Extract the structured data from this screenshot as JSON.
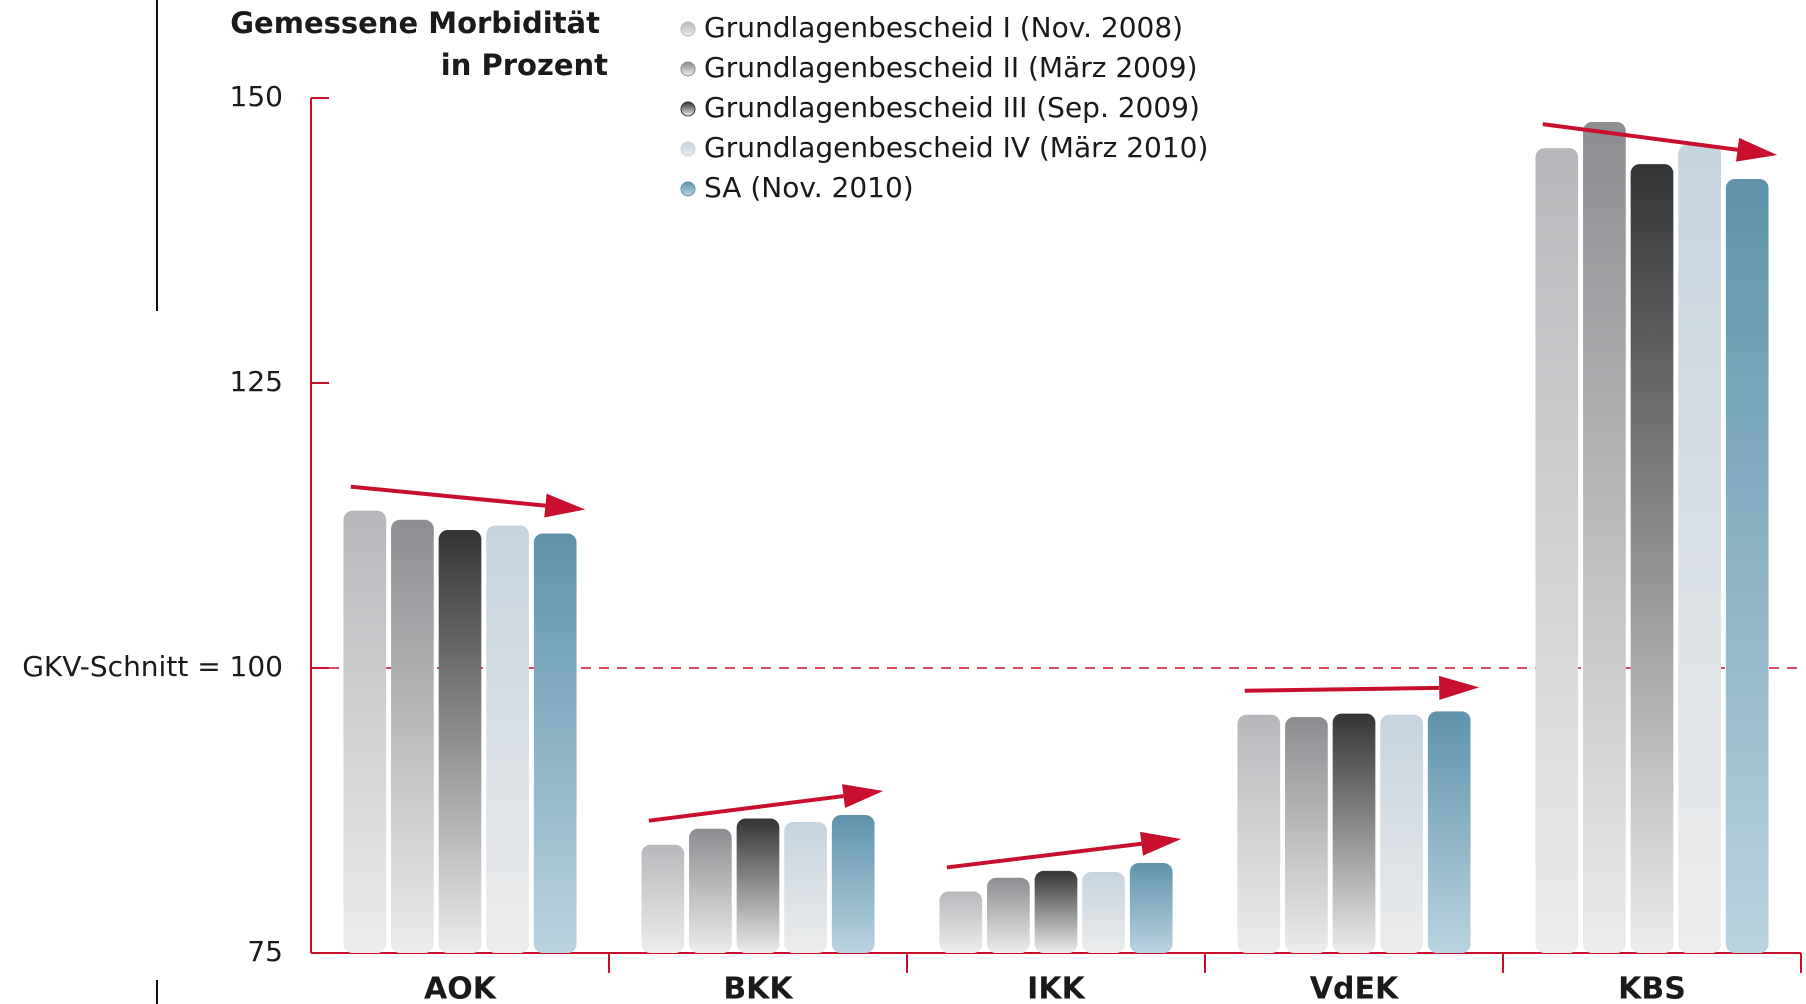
{
  "chart_data": {
    "type": "bar",
    "ylabel": [
      "Gemessene Morbidität",
      "in Prozent"
    ],
    "categories": [
      "AOK",
      "BKK",
      "IKK",
      "VdEK",
      "KBS"
    ],
    "series": [
      {
        "name": "Grundlagenbescheid I (Nov. 2008)",
        "color": "#b6b8bb",
        "values": [
          113.8,
          84.5,
          80.4,
          95.9,
          145.6
        ]
      },
      {
        "name": "Grundlagenbescheid II (März 2009)",
        "color": "#8b8d90",
        "values": [
          113.0,
          85.9,
          81.6,
          95.7,
          147.9
        ]
      },
      {
        "name": "Grundlagenbescheid III (Sep. 2009)",
        "color": "#333436",
        "values": [
          112.1,
          86.8,
          82.2,
          96.0,
          144.2
        ]
      },
      {
        "name": "Grundlagenbescheid IV (März 2010)",
        "color": "#c6d4df",
        "values": [
          112.5,
          86.5,
          82.1,
          95.9,
          145.9
        ]
      },
      {
        "name": "SA (Nov. 2010)",
        "color": "#5f93ab",
        "values": [
          111.8,
          87.1,
          82.9,
          96.2,
          142.9
        ]
      }
    ],
    "ylim": [
      75,
      150
    ],
    "yticks": [
      75,
      {
        "value": 100,
        "label": "GKV-Schnitt = 100"
      },
      125,
      150
    ],
    "reference_line": {
      "value": 100,
      "color": "#c8102e"
    },
    "axis_color": "#c8102e",
    "legend": "top"
  }
}
